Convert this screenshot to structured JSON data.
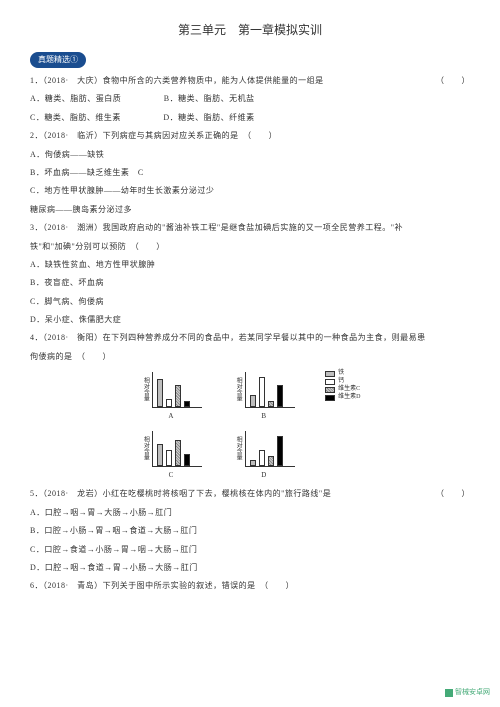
{
  "title": "第三单元　第一章模拟实训",
  "badge": "真题精选①",
  "paren": "（　　）",
  "questions": {
    "q1": "1．（2018·　大庆）食物中所含的六类营养物质中，能为人体提供能量的一组是",
    "q1a": "A．糖类、脂肪、蛋白质",
    "q1b": "B．糖类、脂肪、无机盐",
    "q1c": "C．糖类、脂肪、维生素",
    "q1d": "D．糖类、脂肪、纤维素",
    "q2": "2．（2018·　临沂）下列病症与其病因对应关系正确的是　（　　）",
    "q2a": "A．佝偻病——缺铁",
    "q2b": "B．坏血病——缺乏维生素　C",
    "q2c": "C．地方性甲状腺肿——幼年时生长激素分泌过少",
    "q2d": "糖尿病——胰岛素分泌过多",
    "q3a": "3．（2018·　潮洲）我国政府启动的\"酱油补铁工程\"是继食盐加碘后实施的又一项全民营养工程。\"补",
    "q3b": "铁\"和\"加碘\"分别可以预防　（　　）",
    "q3c": "A．缺铁性贫血、地方性甲状腺肿",
    "q3d": "B．夜盲症、坏血病",
    "q3e": "C．脚气病、佝偻病",
    "q3f": "D．呆小症、侏儒肥大症",
    "q4a": "4．（2018·　衡阳）在下列四种营养成分不同的食品中，若某同学早餐以其中的一种食品为主食，则最易患",
    "q4b": "佝偻病的是　（　　）",
    "q5": "5．（2018·　龙岩）小红在吃樱桃时将核咽了下去，樱桃核在体内的\"旅行路线\"是",
    "q5a": "A．口腔→咽→胃→大肠→小肠→肛门",
    "q5b": "B．口腔→小肠→胃→咽→食道→大肠→肛门",
    "q5c": "C．口腔→食道→小肠→胃→咽→大肠→肛门",
    "q5d": "D．口腔→咽→食道→胃→小肠→大肠→肛门",
    "q6": "6．（2018·　青岛）下列关于图中所示实验的叙述，错误的是　（　　）"
  },
  "chart": {
    "ylabel": "相对含量",
    "labels": {
      "A": "A",
      "B": "B",
      "C": "C",
      "D": "D"
    },
    "bars": {
      "A": [
        28,
        8,
        22,
        6
      ],
      "B": [
        12,
        30,
        6,
        22
      ],
      "C": [
        22,
        16,
        26,
        12
      ],
      "D": [
        6,
        16,
        10,
        30
      ]
    },
    "colors": {
      "fe": {
        "fill": "#bfbfbf",
        "pattern": false,
        "label": "铁"
      },
      "ca": {
        "fill": "#ffffff",
        "pattern": false,
        "label": "钙"
      },
      "vc": {
        "fill": "#d0d0d0",
        "pattern": true,
        "label": "维生素C"
      },
      "vd": {
        "fill": "#000000",
        "pattern": false,
        "label": "维生素D"
      }
    }
  },
  "footer": "智械安卓网"
}
